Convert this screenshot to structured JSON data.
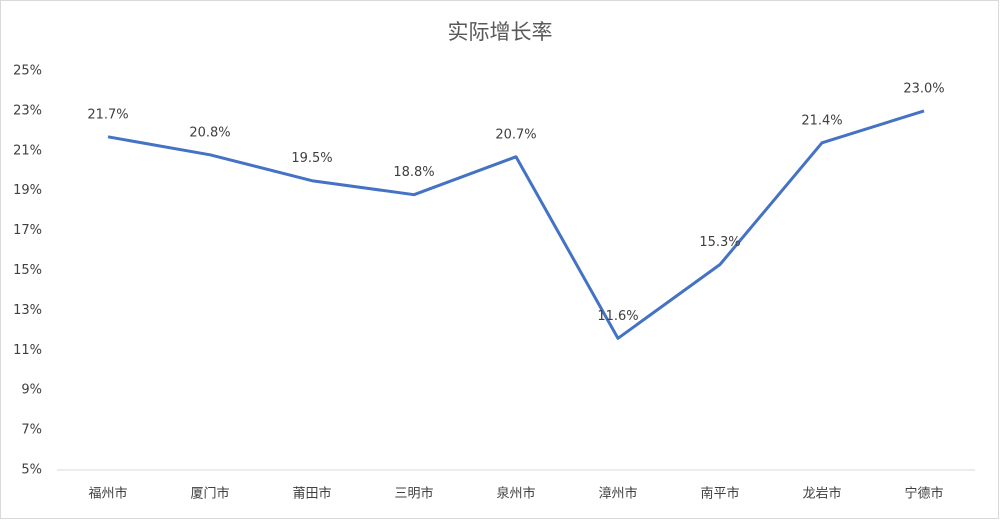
{
  "chart_data": {
    "type": "line",
    "title": "实际增长率",
    "categories": [
      "福州市",
      "厦门市",
      "莆田市",
      "三明市",
      "泉州市",
      "漳州市",
      "南平市",
      "龙岩市",
      "宁德市"
    ],
    "series": [
      {
        "color": "#4472c4",
        "values": [
          21.7,
          20.8,
          19.5,
          18.8,
          20.7,
          11.6,
          15.3,
          21.4,
          23.0
        ],
        "value_labels": [
          "21.7%",
          "20.8%",
          "19.5%",
          "18.8%",
          "20.7%",
          "11.6%",
          "15.3%",
          "21.4%",
          "23.0%"
        ]
      }
    ],
    "ylim": [
      5,
      25
    ],
    "yticks": [
      {
        "value": 5,
        "label": "5%"
      },
      {
        "value": 7,
        "label": "7%"
      },
      {
        "value": 9,
        "label": "9%"
      },
      {
        "value": 11,
        "label": "11%"
      },
      {
        "value": 13,
        "label": "13%"
      },
      {
        "value": 15,
        "label": "15%"
      },
      {
        "value": 17,
        "label": "17%"
      },
      {
        "value": 19,
        "label": "19%"
      },
      {
        "value": 21,
        "label": "21%"
      },
      {
        "value": 23,
        "label": "23%"
      },
      {
        "value": 25,
        "label": "25%"
      }
    ],
    "grid": false
  }
}
